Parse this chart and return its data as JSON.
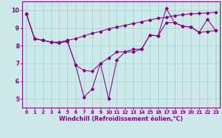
{
  "xlabel": "Windchill (Refroidissement éolien,°C)",
  "background_color": "#cce8e8",
  "grid_color": "#aad4d4",
  "line_color": "#880088",
  "xlim": [
    -0.5,
    23.5
  ],
  "ylim": [
    4.5,
    10.5
  ],
  "xticks": [
    0,
    1,
    2,
    3,
    4,
    5,
    6,
    7,
    8,
    9,
    10,
    11,
    12,
    13,
    14,
    15,
    16,
    17,
    18,
    19,
    20,
    21,
    22,
    23
  ],
  "yticks": [
    5,
    6,
    7,
    8,
    9,
    10
  ],
  "series": [
    [
      9.8,
      8.4,
      8.3,
      8.2,
      8.2,
      8.3,
      8.4,
      8.55,
      8.7,
      8.8,
      8.95,
      9.05,
      9.15,
      9.25,
      9.35,
      9.45,
      9.55,
      9.6,
      9.7,
      9.75,
      9.8,
      9.82,
      9.85,
      9.88
    ],
    [
      9.8,
      8.4,
      8.3,
      8.2,
      8.15,
      8.25,
      6.9,
      5.1,
      5.55,
      7.0,
      5.0,
      7.2,
      7.65,
      7.65,
      7.8,
      8.6,
      8.55,
      10.1,
      9.3,
      9.1,
      9.05,
      8.75,
      9.5,
      8.85
    ],
    [
      9.8,
      8.4,
      8.3,
      8.2,
      8.15,
      8.25,
      6.9,
      6.6,
      6.55,
      7.0,
      7.3,
      7.65,
      7.65,
      7.8,
      7.8,
      8.6,
      8.55,
      9.3,
      9.3,
      9.1,
      9.05,
      8.75,
      8.8,
      8.85
    ]
  ],
  "tick_fontsize": 5,
  "xlabel_fontsize": 6,
  "xlabel_fontweight": "bold"
}
